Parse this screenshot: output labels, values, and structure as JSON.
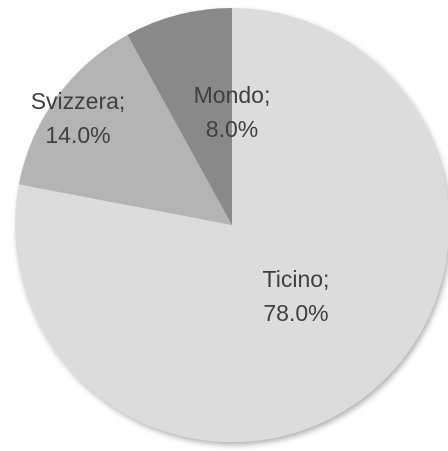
{
  "chart_data": {
    "type": "pie",
    "categories": [
      "Ticino;",
      "Svizzera;",
      "Mondo;"
    ],
    "values": [
      78,
      14,
      8
    ],
    "value_labels": [
      "78.0%",
      "14.0%",
      "8.0%"
    ],
    "colors": [
      "#dcdcdc",
      "#b4b4b4",
      "#898989"
    ]
  }
}
